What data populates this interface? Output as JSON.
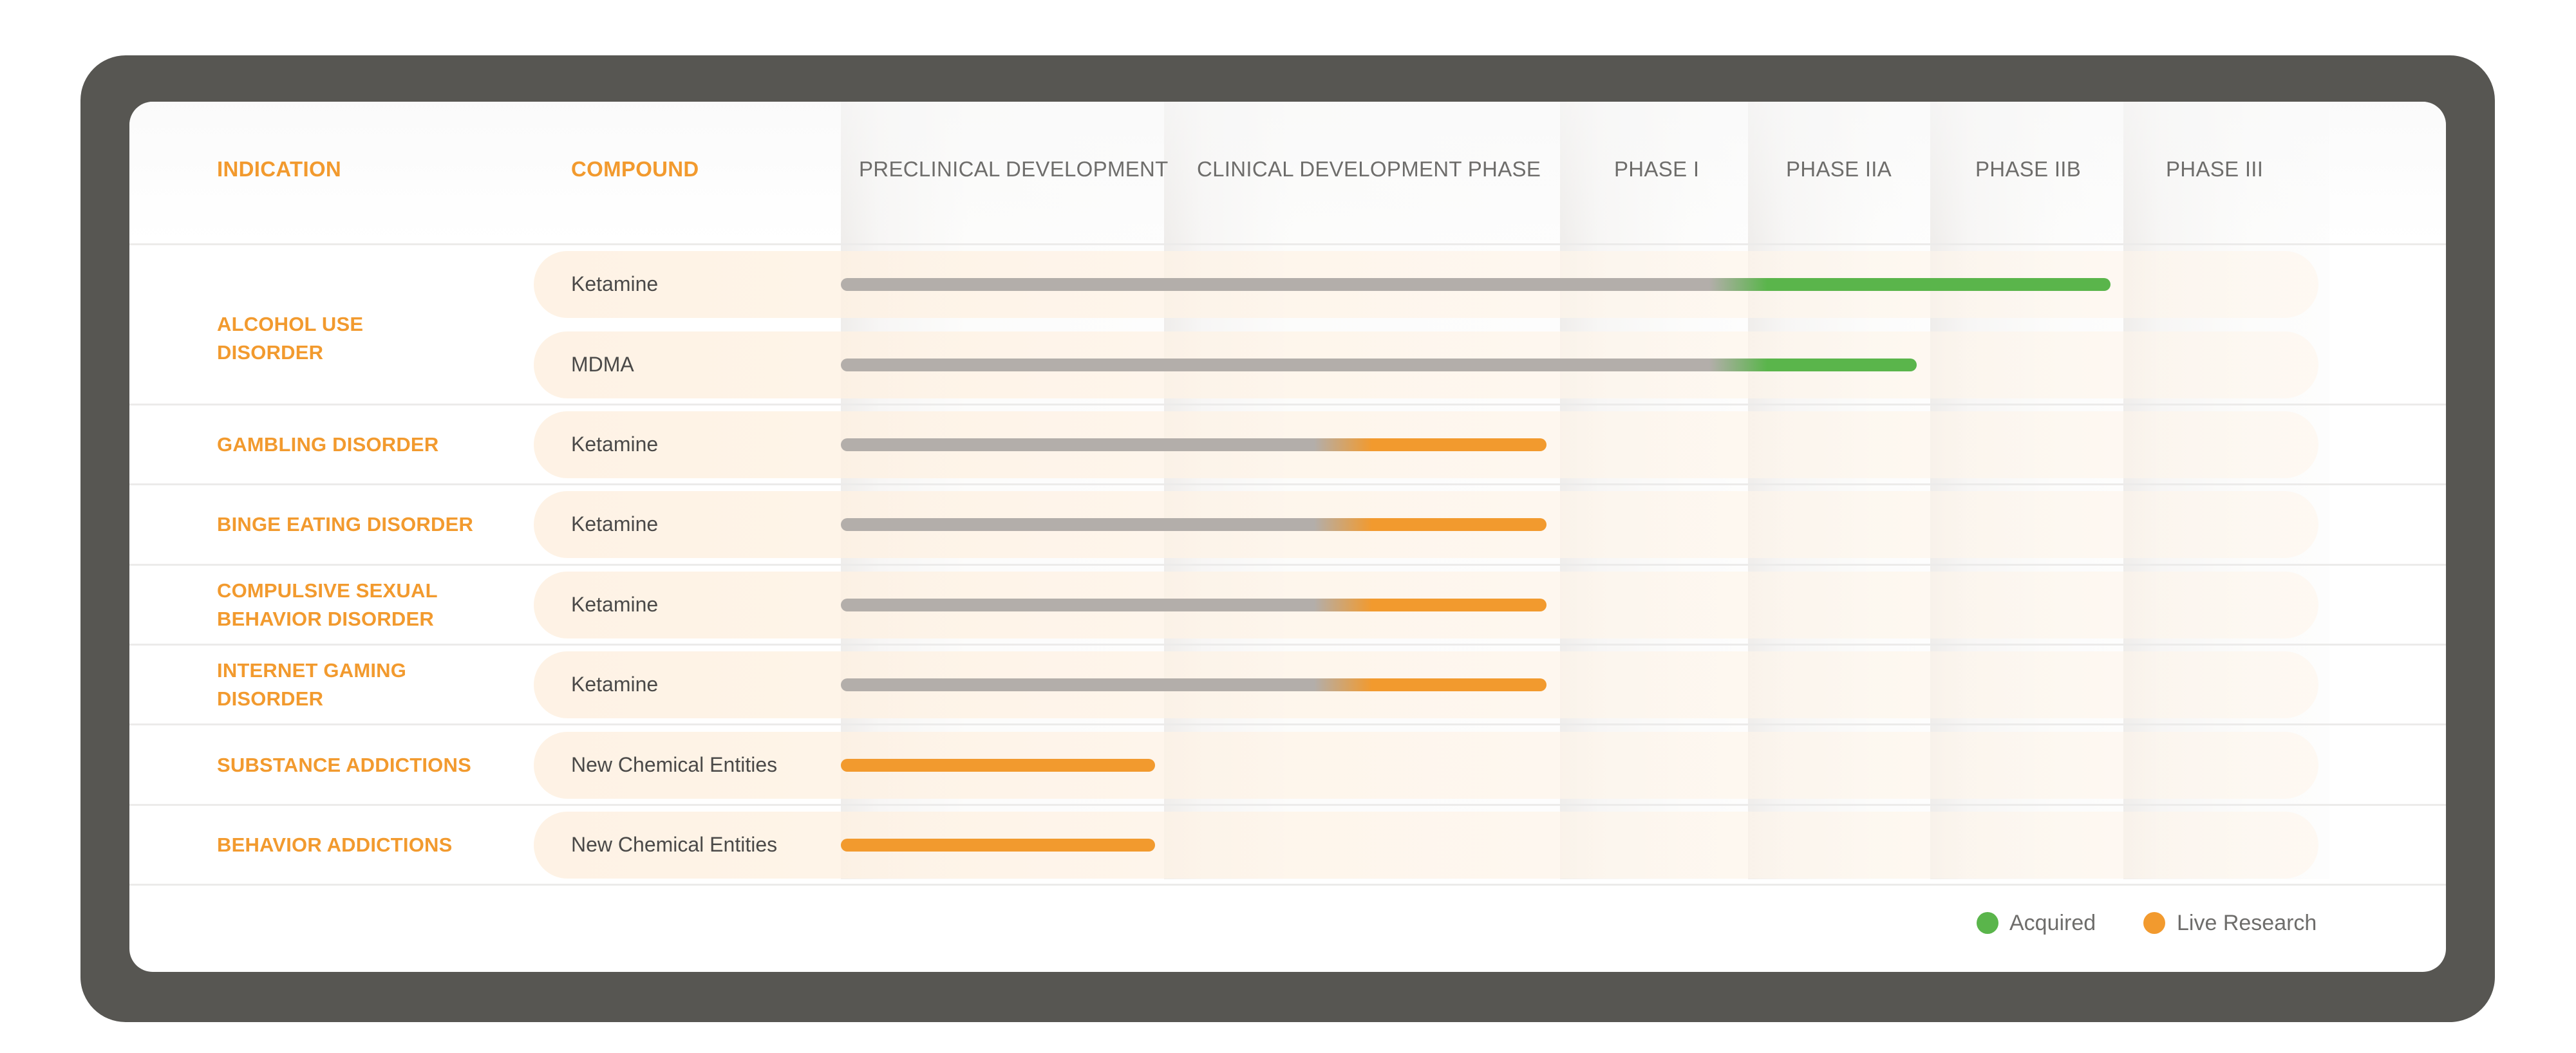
{
  "headers": {
    "indication": "INDICATION",
    "compound": "COMPOUND",
    "phases": [
      "PRECLINICAL DEVELOPMENT",
      "CLINICAL DEVELOPMENT PHASE",
      "PHASE I",
      "PHASE IIA",
      "PHASE IIB",
      "PHASE III"
    ]
  },
  "legend": {
    "acquired": "Acquired",
    "live_research": "Live Research"
  },
  "colors": {
    "frame": "#575652",
    "orange": "#f29a2e",
    "green": "#5ab54b",
    "gray_bar": "#b3aeaa",
    "text": "#4a4948"
  },
  "chart_data": {
    "type": "bar",
    "phases": [
      "PRECLINICAL DEVELOPMENT",
      "CLINICAL DEVELOPMENT PHASE",
      "PHASE I",
      "PHASE IIA",
      "PHASE IIB",
      "PHASE III"
    ],
    "groups": [
      {
        "indication": "ALCOHOL USE DISORDER",
        "rows": [
          {
            "compound": "Ketamine",
            "status": "acquired",
            "progress_phases": 5.0
          },
          {
            "compound": "MDMA",
            "status": "acquired",
            "progress_phases": 4.0
          }
        ]
      },
      {
        "indication": "GAMBLING DISORDER",
        "rows": [
          {
            "compound": "Ketamine",
            "status": "live_research",
            "progress_phases": 2.0
          }
        ]
      },
      {
        "indication": "BINGE EATING DISORDER",
        "rows": [
          {
            "compound": "Ketamine",
            "status": "live_research",
            "progress_phases": 2.0
          }
        ]
      },
      {
        "indication": "COMPULSIVE SEXUAL BEHAVIOR DISORDER",
        "rows": [
          {
            "compound": "Ketamine",
            "status": "live_research",
            "progress_phases": 2.0
          }
        ]
      },
      {
        "indication": "INTERNET GAMING DISORDER",
        "rows": [
          {
            "compound": "Ketamine",
            "status": "live_research",
            "progress_phases": 2.0
          }
        ]
      },
      {
        "indication": "SUBSTANCE ADDICTIONS",
        "rows": [
          {
            "compound": "New Chemical Entities",
            "status": "live_research",
            "progress_phases": 1.0
          }
        ]
      },
      {
        "indication": "BEHAVIOR ADDICTIONS",
        "rows": [
          {
            "compound": "New Chemical Entities",
            "status": "live_research",
            "progress_phases": 1.0
          }
        ]
      }
    ]
  }
}
